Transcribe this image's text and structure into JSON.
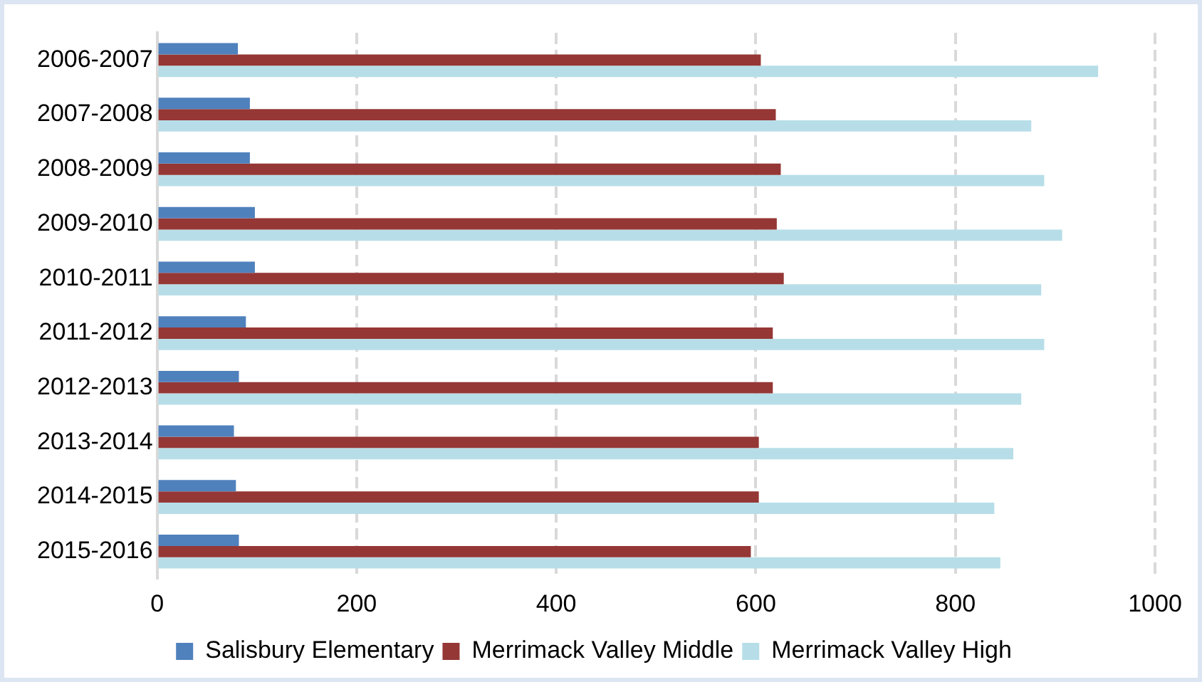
{
  "chart_data": {
    "type": "bar",
    "orientation": "horizontal",
    "categories": [
      "2006-2007",
      "2007-2008",
      "2008-2009",
      "2009-2010",
      "2010-2011",
      "2011-2012",
      "2012-2013",
      "2013-2014",
      "2014-2015",
      "2015-2016"
    ],
    "series": [
      {
        "name": "Salisbury Elementary",
        "color": "#4f81bd",
        "values": [
          81,
          93,
          93,
          98,
          98,
          89,
          82,
          77,
          79,
          82
        ]
      },
      {
        "name": "Merrimack Valley Middle",
        "color": "#953735",
        "values": [
          605,
          620,
          625,
          621,
          628,
          617,
          617,
          603,
          603,
          595
        ]
      },
      {
        "name": "Merrimack Valley High",
        "color": "#b7dee8",
        "values": [
          943,
          876,
          889,
          907,
          886,
          889,
          866,
          858,
          839,
          845
        ]
      }
    ],
    "xlim": [
      0,
      1000
    ],
    "xticks": [
      0,
      200,
      400,
      600,
      800,
      1000
    ],
    "grid": "x",
    "legend": "bottom"
  }
}
